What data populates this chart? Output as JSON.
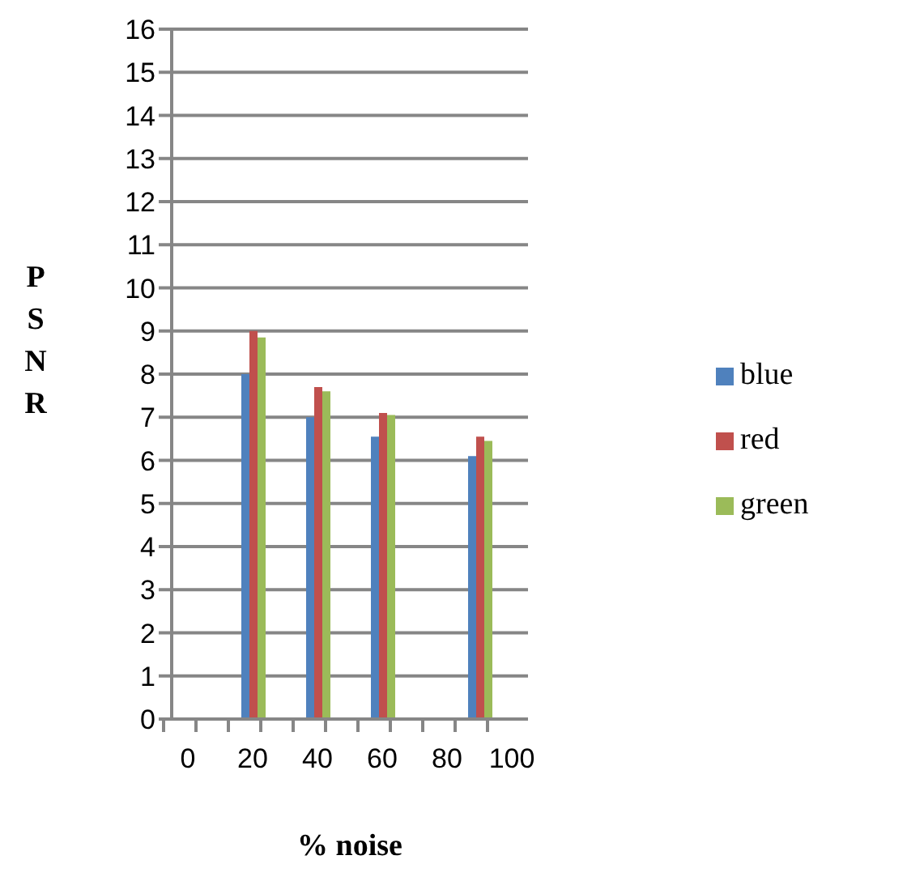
{
  "chart_data": {
    "type": "bar",
    "xlabel": "% noise",
    "ylabel": "PSNR",
    "categories": [
      "0",
      null,
      "20",
      null,
      "40",
      null,
      "60",
      null,
      "80",
      null,
      "100"
    ],
    "series": [
      {
        "name": "blue",
        "color": "#4f81bd",
        "values": [
          null,
          null,
          8.0,
          null,
          7.0,
          null,
          6.55,
          null,
          null,
          6.1,
          null
        ]
      },
      {
        "name": "red",
        "color": "#c0504d",
        "values": [
          null,
          null,
          9.0,
          null,
          7.7,
          null,
          7.1,
          null,
          null,
          6.55,
          null
        ]
      },
      {
        "name": "green",
        "color": "#9bbb59",
        "values": [
          null,
          null,
          8.85,
          null,
          7.6,
          null,
          7.05,
          null,
          null,
          6.45,
          null
        ]
      }
    ],
    "ylim": [
      0,
      16
    ],
    "yticks": [
      0,
      1,
      2,
      3,
      4,
      5,
      6,
      7,
      8,
      9,
      10,
      11,
      12,
      13,
      14,
      15,
      16
    ],
    "grid": "y",
    "legend": "right"
  }
}
